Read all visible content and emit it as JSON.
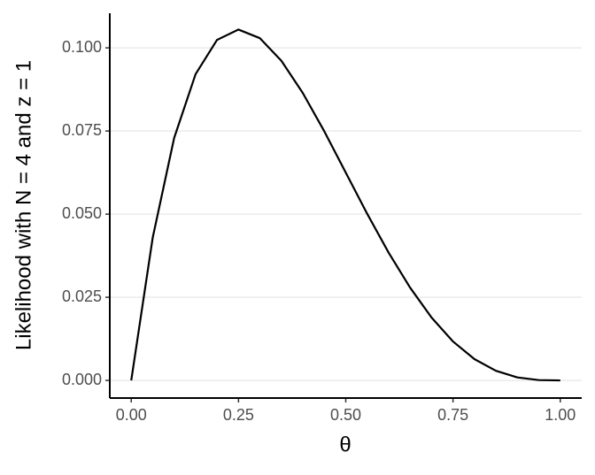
{
  "chart_data": {
    "type": "line",
    "x_label": "θ",
    "y_label": "Likelihood with N = 4 and z = 1",
    "x": [
      0,
      0.05,
      0.1,
      0.15,
      0.2,
      0.25,
      0.3,
      0.35,
      0.4,
      0.45,
      0.5,
      0.55,
      0.6,
      0.65,
      0.7,
      0.75,
      0.8,
      0.85,
      0.9,
      0.95,
      1
    ],
    "series": [
      {
        "color": "#000000",
        "values": [
          0,
          0.0429,
          0.0729,
          0.0921,
          0.1024,
          0.1055,
          0.1029,
          0.0961,
          0.0864,
          0.0749,
          0.0625,
          0.0501,
          0.0384,
          0.0279,
          0.0189,
          0.0117,
          0.0064,
          0.0029,
          0.0009,
          0.0001,
          0
        ]
      }
    ],
    "xlim": [
      -0.05,
      1.05
    ],
    "ylim": [
      -0.0053,
      0.1104
    ],
    "xticks": [
      {
        "value": 0,
        "label": "0.00"
      },
      {
        "value": 0.25,
        "label": "0.25"
      },
      {
        "value": 0.5,
        "label": "0.50"
      },
      {
        "value": 0.75,
        "label": "0.75"
      },
      {
        "value": 1,
        "label": "1.00"
      }
    ],
    "yticks": [
      {
        "value": 0,
        "label": "0.000"
      },
      {
        "value": 0.025,
        "label": "0.025"
      },
      {
        "value": 0.05,
        "label": "0.050"
      },
      {
        "value": 0.075,
        "label": "0.075"
      },
      {
        "value": 0.1,
        "label": "0.100"
      }
    ],
    "grid": true
  }
}
